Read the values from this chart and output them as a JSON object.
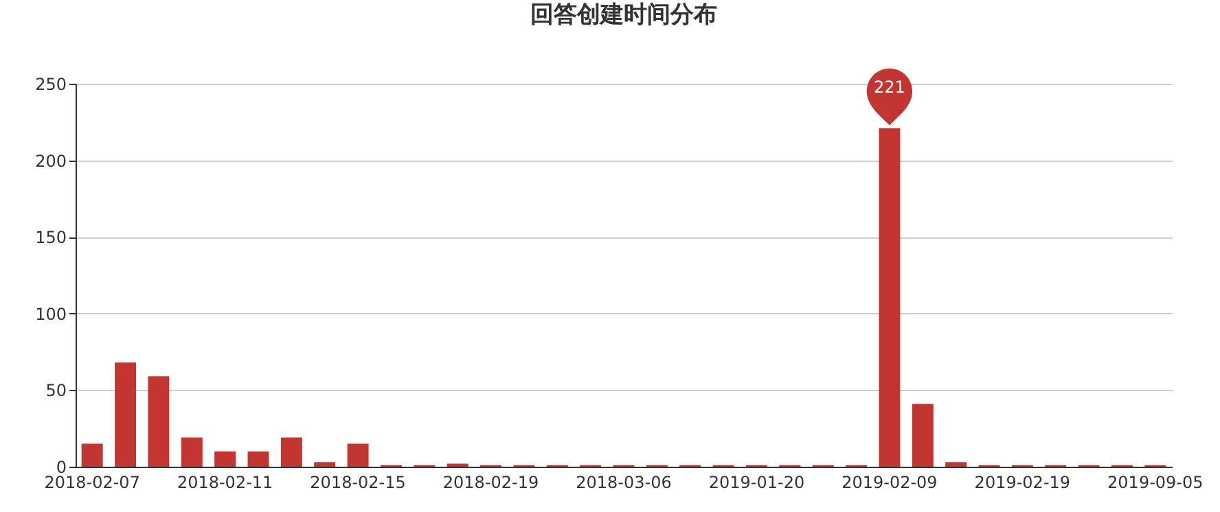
{
  "chart_data": {
    "type": "bar",
    "title": "回答创建时间分布",
    "categories": [
      "2018-02-07",
      null,
      null,
      null,
      "2018-02-11",
      null,
      null,
      null,
      "2018-02-15",
      null,
      null,
      null,
      "2018-02-19",
      null,
      null,
      null,
      "2018-03-06",
      null,
      null,
      null,
      "2019-01-20",
      null,
      null,
      null,
      "2019-02-09",
      null,
      null,
      null,
      "2019-02-19",
      null,
      null,
      null,
      "2019-09-05"
    ],
    "values": [
      15,
      68,
      59,
      19,
      10,
      10,
      19,
      3,
      15,
      1,
      1,
      2,
      1,
      1,
      1,
      1,
      1,
      1,
      1,
      1,
      1,
      1,
      1,
      1,
      221,
      41,
      3,
      1,
      1,
      1,
      1,
      1,
      1
    ],
    "color": "#c23531",
    "ylim": [
      0,
      250
    ],
    "yticks": [
      0,
      50,
      100,
      150,
      200,
      250
    ],
    "grid": "y",
    "annotations": [
      {
        "text": "221",
        "x": "2019-02-09",
        "y": 221
      }
    ]
  }
}
